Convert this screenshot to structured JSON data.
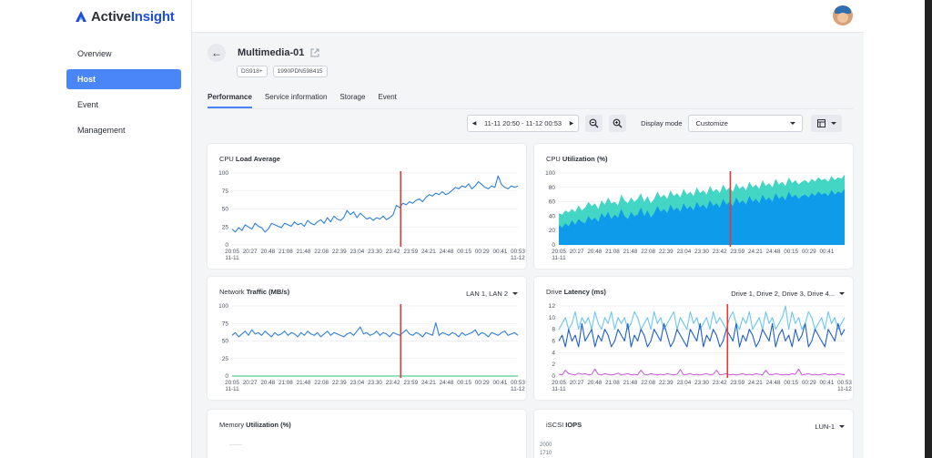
{
  "brand": {
    "name_part1": "Active",
    "name_part2": "Insight",
    "color": "#1d4ed8"
  },
  "sidebar": {
    "items": [
      {
        "label": "Overview",
        "active": false
      },
      {
        "label": "Host",
        "active": true
      },
      {
        "label": "Event",
        "active": false
      },
      {
        "label": "Management",
        "active": false
      }
    ]
  },
  "header": {
    "title": "Multimedia-01",
    "badges": [
      "DS918+",
      "1990PDN598415"
    ]
  },
  "tabs": [
    "Performance",
    "Service information",
    "Storage",
    "Event"
  ],
  "toolbar": {
    "range": "11-11 20:50 - 11-12 00:53",
    "display_mode_label": "Display mode",
    "display_mode_value": "Customize"
  },
  "colors": {
    "accent": "#4a86f7",
    "marker": "#e53935",
    "line_blue": "#2f7fdb",
    "area_teal": "#43d6c4",
    "area_blue": "#0d9bea",
    "line_green": "#2ec27e",
    "line_light": "#6ec6f0",
    "line_dark": "#1d5fc9",
    "line_purple": "#c858d6"
  },
  "x_tick_labels": [
    "20:05",
    "20:27",
    "20:48",
    "21:08",
    "21:48",
    "22:08",
    "22:39",
    "23:04",
    "23:30",
    "23:42",
    "23:59",
    "24:21",
    "24:48",
    "00:15",
    "00:29",
    "00:41",
    "00:53"
  ],
  "x_tick_labels_short": [
    "20:05",
    "20:27",
    "20:48",
    "21:08",
    "21:48",
    "22:08",
    "22:39",
    "23:04",
    "23:30",
    "23:42",
    "23:59",
    "24:21",
    "24:48",
    "00:15",
    "00:29",
    "00:41"
  ],
  "date_start": "11-11",
  "date_end": "11-12",
  "chart_data": [
    {
      "id": "cpu-load",
      "type": "line",
      "title_plain": "CPU ",
      "title_bold": "Load Average",
      "ylim": [
        0,
        100
      ],
      "yticks": [
        0,
        25,
        50,
        75,
        100
      ],
      "series": [
        {
          "values": [
            22,
            18,
            24,
            20,
            28,
            25,
            22,
            30,
            26,
            24,
            18,
            22,
            30,
            28,
            26,
            24,
            30,
            28,
            26,
            32,
            28,
            30,
            26,
            34,
            30,
            28,
            32,
            35,
            30,
            38,
            32,
            40,
            36,
            34,
            38,
            48,
            42,
            46,
            38,
            44,
            40,
            36,
            38,
            34,
            38,
            36,
            40,
            35,
            38,
            42,
            55,
            52,
            58,
            56,
            60,
            58,
            62,
            64,
            60,
            66,
            70,
            68,
            72,
            70,
            74,
            70,
            72,
            76,
            80,
            78,
            82,
            80,
            85,
            78,
            82,
            88,
            84,
            80,
            78,
            82,
            80,
            96,
            84,
            80,
            78,
            82,
            80,
            82
          ]
        }
      ],
      "marker_fraction": 0.59
    },
    {
      "id": "cpu-util",
      "type": "area",
      "title_plain": "CPU ",
      "title_bold": "Utilization (%)",
      "ylim": [
        0,
        100
      ],
      "yticks": [
        0,
        20,
        40,
        60,
        80,
        100
      ],
      "series": [
        {
          "values": [
            44,
            42,
            48,
            45,
            50,
            46,
            55,
            48,
            52,
            60,
            54,
            58,
            50,
            62,
            56,
            66,
            58,
            60,
            55,
            70,
            62,
            58,
            66,
            60,
            64,
            72,
            60,
            68,
            58,
            64,
            74,
            66,
            70,
            64,
            76,
            68,
            72,
            66,
            78,
            70,
            74,
            68,
            80,
            72,
            76,
            70,
            82,
            74,
            78,
            72,
            84,
            76,
            80,
            74,
            86,
            78,
            82,
            76,
            88,
            80,
            84,
            78,
            90,
            82,
            86,
            80,
            92,
            84,
            88,
            82,
            94,
            86,
            90,
            84,
            88,
            90,
            86,
            92,
            88,
            94,
            90,
            92,
            88,
            96,
            90,
            94,
            92,
            98
          ]
        },
        {
          "values": [
            28,
            24,
            30,
            26,
            34,
            28,
            36,
            32,
            30,
            40,
            34,
            38,
            32,
            44,
            38,
            46,
            36,
            42,
            38,
            50,
            40,
            36,
            46,
            40,
            42,
            52,
            40,
            48,
            38,
            44,
            54,
            46,
            50,
            44,
            56,
            48,
            52,
            46,
            58,
            50,
            54,
            48,
            60,
            52,
            56,
            50,
            62,
            54,
            58,
            52,
            64,
            56,
            60,
            54,
            66,
            58,
            62,
            56,
            68,
            60,
            64,
            58,
            70,
            62,
            66,
            60,
            72,
            64,
            68,
            62,
            74,
            66,
            70,
            64,
            68,
            70,
            66,
            72,
            68,
            74,
            70,
            72,
            68,
            76,
            70,
            74,
            72,
            78
          ]
        }
      ],
      "marker_fraction": 0.6
    },
    {
      "id": "network",
      "type": "line",
      "title_plain": "Network ",
      "title_bold": "Traffic (MB/s)",
      "dropdown": "LAN 1, LAN 2",
      "ylim": [
        0,
        100
      ],
      "yticks": [
        0,
        25,
        50,
        75,
        100
      ],
      "series": [
        {
          "values": [
            58,
            62,
            56,
            60,
            64,
            58,
            66,
            60,
            62,
            58,
            64,
            60,
            56,
            62,
            58,
            60,
            64,
            58,
            62,
            60,
            56,
            62,
            58,
            64,
            60,
            58,
            62,
            56,
            60,
            64,
            58,
            62,
            60,
            58,
            56,
            60,
            62,
            58,
            64,
            70,
            60,
            62,
            58,
            60,
            64,
            58,
            62,
            60,
            56,
            62,
            60,
            58,
            62,
            66,
            60,
            58,
            62,
            60,
            56,
            62,
            60,
            58,
            76,
            58,
            62,
            60,
            58,
            62,
            60,
            56,
            62,
            58,
            60,
            62,
            66,
            58,
            62,
            60,
            56,
            62,
            60,
            58,
            62,
            64,
            58,
            60,
            62,
            58
          ]
        },
        {
          "values": [
            0,
            0,
            0,
            0,
            0,
            0,
            0,
            0,
            0,
            0,
            0,
            0,
            0,
            0,
            0,
            0,
            0,
            0,
            0,
            0,
            0,
            0,
            0,
            0,
            0,
            0,
            0,
            0,
            0,
            0,
            0,
            0,
            0,
            0,
            0,
            0,
            0,
            0,
            0,
            0,
            0,
            0,
            0,
            0,
            0,
            0,
            0,
            0,
            0,
            0,
            0,
            0,
            0,
            0,
            0,
            0,
            0,
            0,
            0,
            0,
            0,
            0,
            0,
            0,
            0,
            0,
            0,
            0,
            0,
            0,
            0,
            0,
            0,
            0,
            0,
            0,
            0,
            0,
            0,
            0,
            0,
            0,
            0,
            0,
            0,
            0,
            0,
            0
          ]
        }
      ],
      "marker_fraction": 0.59
    },
    {
      "id": "drive-latency",
      "type": "line",
      "title_plain": "Drive ",
      "title_bold": "Latency (ms)",
      "dropdown": "Drive 1, Drive 2, Drive 3, Drive 4...",
      "ylim": [
        0,
        12
      ],
      "yticks": [
        0,
        2,
        4,
        6,
        8,
        10,
        12
      ],
      "series": [
        {
          "values": [
            8,
            9,
            10,
            8,
            9,
            11,
            8,
            10,
            9,
            10,
            8,
            11,
            9,
            8,
            10,
            9,
            11,
            8,
            10,
            9,
            10,
            8,
            9,
            11,
            10,
            8,
            9,
            10,
            8,
            11,
            9,
            10,
            8,
            9,
            10,
            11,
            8,
            10,
            9,
            8,
            11,
            9,
            10,
            8,
            9,
            10,
            8,
            11,
            9,
            10,
            9,
            8,
            10,
            11,
            9,
            8,
            10,
            9,
            11,
            8,
            9,
            10,
            8,
            11,
            9,
            10,
            8,
            9,
            10,
            12,
            8,
            11,
            9,
            10,
            8,
            9,
            11,
            10,
            8,
            9,
            10,
            8,
            11,
            9,
            10,
            8,
            9,
            10
          ]
        },
        {
          "values": [
            6,
            7,
            5,
            8,
            6,
            7,
            5,
            9,
            6,
            7,
            8,
            5,
            7,
            6,
            8,
            7,
            5,
            6,
            8,
            7,
            6,
            9,
            5,
            7,
            6,
            8,
            7,
            5,
            6,
            8,
            7,
            6,
            9,
            7,
            5,
            6,
            8,
            7,
            6,
            5,
            8,
            7,
            6,
            9,
            5,
            7,
            6,
            8,
            7,
            5,
            6,
            8,
            7,
            6,
            9,
            5,
            7,
            6,
            8,
            7,
            5,
            6,
            8,
            7,
            6,
            9,
            5,
            7,
            8,
            6,
            7,
            5,
            8,
            6,
            7,
            9,
            5,
            6,
            8,
            7,
            6,
            5,
            8,
            7,
            6,
            9,
            7,
            8
          ]
        },
        {
          "values": [
            0.3,
            0.2,
            1.0,
            0.4,
            0.3,
            0.2,
            0.5,
            0.3,
            0.4,
            0.2,
            0.3,
            1.2,
            0.3,
            0.2,
            0.4,
            0.3,
            0.2,
            0.3,
            0.5,
            0.2,
            0.3,
            0.4,
            0.2,
            0.3,
            0.2,
            1.0,
            0.3,
            0.2,
            0.4,
            0.3,
            0.2,
            0.3,
            0.2,
            0.4,
            0.3,
            0.2,
            0.3,
            1.1,
            0.2,
            0.3,
            0.4,
            0.2,
            0.3,
            0.2,
            0.3,
            0.4,
            0.2,
            0.3,
            1.0,
            0.2,
            0.3,
            0.4,
            0.2,
            0.3,
            0.2,
            0.3,
            0.4,
            0.2,
            0.3,
            0.2,
            0.4,
            0.3,
            0.2,
            1.0,
            0.3,
            0.2,
            0.4,
            0.3,
            0.2,
            0.3,
            0.2,
            0.4,
            0.3,
            1.2,
            0.2,
            0.3,
            0.4,
            0.2,
            0.3,
            0.2,
            0.3,
            0.4,
            0.2,
            0.3,
            0.2,
            0.4,
            0.3,
            0.2
          ]
        }
      ],
      "marker_fraction": 0.59
    },
    {
      "id": "memory",
      "type": "line",
      "title_plain": "Memory ",
      "title_bold": "Utilization (%)",
      "series": []
    },
    {
      "id": "iscsi",
      "type": "line",
      "title_plain": "iSCSI ",
      "title_bold": "IOPS",
      "dropdown": "LUN-1",
      "yticks_visible": [
        "2000",
        "1710"
      ],
      "series": []
    }
  ]
}
